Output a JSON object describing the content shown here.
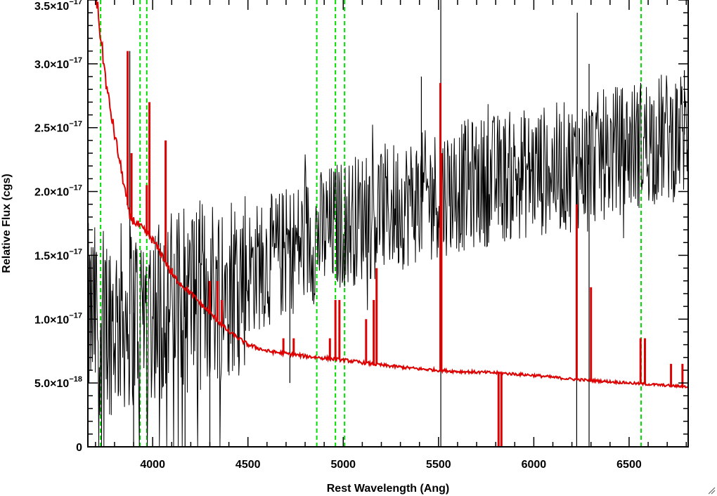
{
  "chart_data": {
    "type": "line",
    "title": "",
    "xlabel": "Rest Wavelength (Ang)",
    "ylabel": "Relative Flux (cgs)",
    "xlim": [
      3660,
      6810
    ],
    "ylim": [
      0,
      3.5e-17
    ],
    "x_ticks": [
      {
        "value": 4000,
        "label": "4000"
      },
      {
        "value": 4500,
        "label": "4500"
      },
      {
        "value": 5000,
        "label": "5000"
      },
      {
        "value": 5500,
        "label": "5500"
      },
      {
        "value": 6000,
        "label": "6000"
      },
      {
        "value": 6500,
        "label": "6500"
      }
    ],
    "y_ticks": [
      {
        "value": 0,
        "mantissa": "0",
        "exponent": ""
      },
      {
        "value": 5e-18,
        "mantissa": "5.0×10",
        "exponent": "−18"
      },
      {
        "value": 1e-17,
        "mantissa": "1.0×10",
        "exponent": "−17"
      },
      {
        "value": 1.5e-17,
        "mantissa": "1.5×10",
        "exponent": "−17"
      },
      {
        "value": 2e-17,
        "mantissa": "2.0×10",
        "exponent": "−17"
      },
      {
        "value": 2.5e-17,
        "mantissa": "2.5×10",
        "exponent": "−17"
      },
      {
        "value": 3e-17,
        "mantissa": "3.0×10",
        "exponent": "−17"
      },
      {
        "value": 3.5e-17,
        "mantissa": "3.5×10",
        "exponent": "−17"
      }
    ],
    "reference_lines": {
      "color": "#00dd00",
      "style": "dashed",
      "x": [
        3727,
        3934,
        3969,
        4861,
        4959,
        5007,
        6563
      ]
    },
    "series": [
      {
        "color": "#000000",
        "style": "noisy",
        "noise_amplitude": 4e-18,
        "continuum": [
          [
            3660,
            1e-17
          ],
          [
            3800,
            1e-17
          ],
          [
            4000,
            1.1e-17
          ],
          [
            4200,
            1.15e-17
          ],
          [
            4400,
            1.3e-17
          ],
          [
            4600,
            1.45e-17
          ],
          [
            4800,
            1.6e-17
          ],
          [
            5000,
            1.75e-17
          ],
          [
            5200,
            1.85e-17
          ],
          [
            5500,
            2e-17
          ],
          [
            5800,
            2.1e-17
          ],
          [
            6000,
            2.15e-17
          ],
          [
            6200,
            2.2e-17
          ],
          [
            6400,
            2.3e-17
          ],
          [
            6600,
            2.4e-17
          ],
          [
            6810,
            2.45e-17
          ]
        ],
        "spikes": [
          [
            3880,
            3.1e-17
          ],
          [
            5512,
            0
          ],
          [
            5512,
            3.5e-17
          ],
          [
            6225,
            0
          ],
          [
            6228,
            3.4e-17
          ],
          [
            6290,
            0
          ],
          [
            6290,
            3e-17
          ],
          [
            5410,
            2.9e-17
          ],
          [
            6860,
            3e-17
          ],
          [
            6790,
            2.95e-17
          ],
          [
            4720,
            5e-18
          ],
          [
            4300,
            0
          ],
          [
            4170,
            0
          ],
          [
            3900,
            0
          ]
        ]
      },
      {
        "color": "#dd0000",
        "style": "smooth",
        "continuum": [
          [
            3700,
            3.6e-17
          ],
          [
            3720,
            3.3e-17
          ],
          [
            3760,
            2.8e-17
          ],
          [
            3800,
            2.45e-17
          ],
          [
            3850,
            2.05e-17
          ],
          [
            3880,
            1.8e-17
          ],
          [
            3950,
            1.7e-17
          ],
          [
            4000,
            1.62e-17
          ],
          [
            4050,
            1.5e-17
          ],
          [
            4100,
            1.35e-17
          ],
          [
            4200,
            1.2e-17
          ],
          [
            4300,
            1.05e-17
          ],
          [
            4400,
            9e-18
          ],
          [
            4500,
            8e-18
          ],
          [
            4600,
            7.5e-18
          ],
          [
            4700,
            7.3e-18
          ],
          [
            4800,
            7.1e-18
          ],
          [
            5000,
            6.8e-18
          ],
          [
            5200,
            6.4e-18
          ],
          [
            5400,
            6.1e-18
          ],
          [
            5600,
            5.9e-18
          ],
          [
            5800,
            5.8e-18
          ],
          [
            6000,
            5.6e-18
          ],
          [
            6200,
            5.3e-18
          ],
          [
            6400,
            5.1e-18
          ],
          [
            6600,
            4.9e-18
          ],
          [
            6810,
            4.7e-18
          ]
        ],
        "emission_lines": [
          [
            3869,
            3.1e-17
          ],
          [
            3889,
            2.3e-17
          ],
          [
            3969,
            2.05e-17
          ],
          [
            3983,
            2.7e-17
          ],
          [
            4068,
            2.4e-17
          ],
          [
            4101,
            1.4e-17
          ],
          [
            4300,
            1.3e-17
          ],
          [
            4340,
            1.3e-17
          ],
          [
            4363,
            1.15e-17
          ],
          [
            4686,
            8.5e-18
          ],
          [
            4740,
            8.5e-18
          ],
          [
            4930,
            8.5e-18
          ],
          [
            4959,
            1.15e-17
          ],
          [
            4980,
            1.15e-17
          ],
          [
            5120,
            1e-17
          ],
          [
            5160,
            1.15e-17
          ],
          [
            5175,
            1.4e-17
          ],
          [
            5510,
            2.85e-17
          ],
          [
            5515,
            2.3e-17
          ],
          [
            6225,
            1.9e-17
          ],
          [
            6300,
            1.25e-17
          ],
          [
            6560,
            8.5e-18
          ],
          [
            6583,
            8.5e-18
          ],
          [
            6720,
            6.5e-18
          ],
          [
            6780,
            6.5e-18
          ]
        ],
        "absorption_lines": [
          [
            5815,
            0
          ],
          [
            5830,
            0
          ]
        ]
      }
    ]
  }
}
